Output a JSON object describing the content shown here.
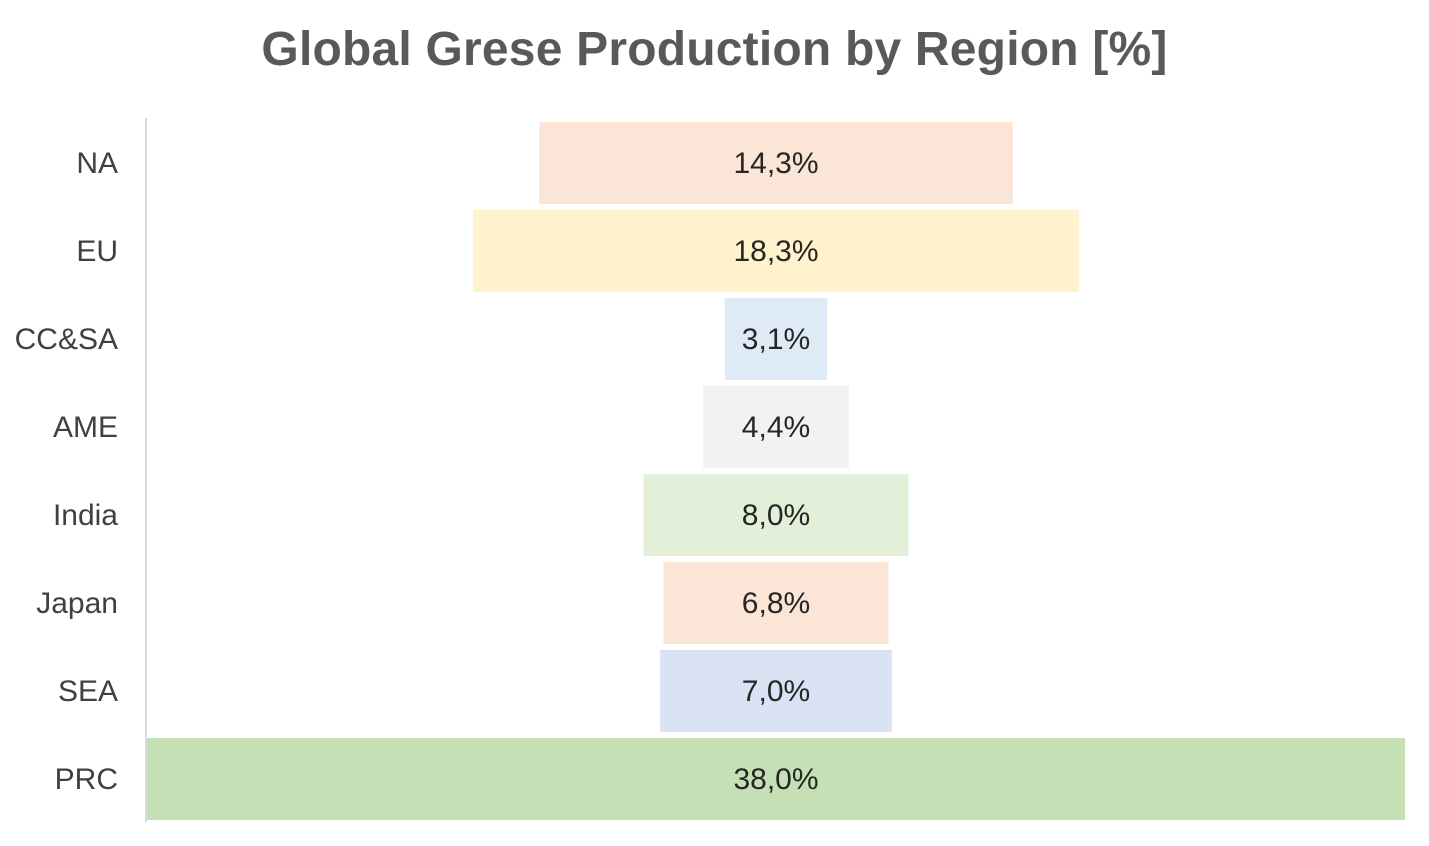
{
  "chart_data": {
    "type": "bar",
    "subtype": "funnel",
    "title": "Global Grese Production by Region [%]",
    "categories": [
      "NA",
      "EU",
      "CC&SA",
      "AME",
      "India",
      "Japan",
      "SEA",
      "PRC"
    ],
    "values": [
      14.3,
      18.3,
      3.1,
      4.4,
      8.0,
      6.8,
      7.0,
      38.0
    ],
    "value_labels": [
      "14,3%",
      "18,3%",
      "3,1%",
      "4,4%",
      "8,0%",
      "6,8%",
      "7,0%",
      "38,0%"
    ],
    "colors": [
      "#FBE5D6",
      "#FFF2CC",
      "#DEEBF7",
      "#F2F2F2",
      "#E2F0D9",
      "#FBE5D6",
      "#DAE3F3",
      "#C5E0B4"
    ],
    "xlim": [
      0,
      38.0
    ],
    "grid": false,
    "legend": "none"
  }
}
